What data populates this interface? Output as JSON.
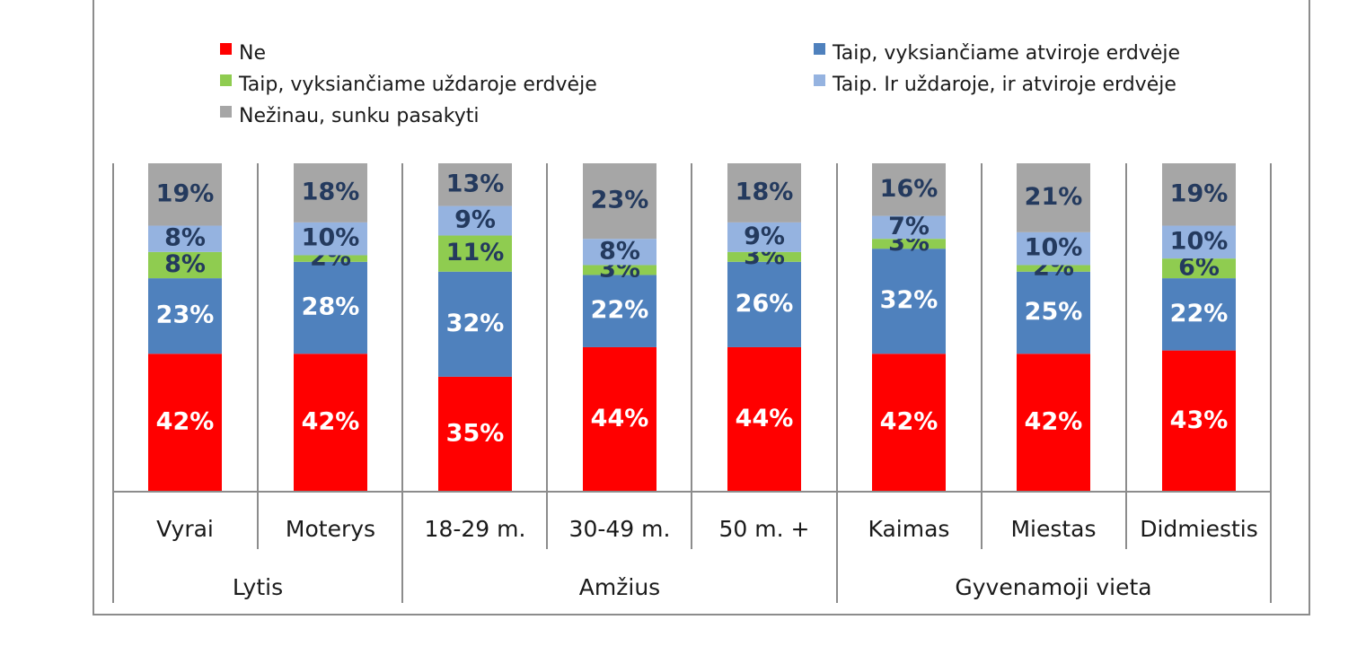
{
  "chart_data": {
    "type": "bar",
    "stacked": true,
    "legend_position": "top",
    "categories": [
      "Vyrai",
      "Moterys",
      "18-29 m.",
      "30-49 m.",
      "50 m. +",
      "Kaimas",
      "Miestas",
      "Didmiestis"
    ],
    "groups": [
      {
        "label": "Lytis",
        "categories": [
          "Vyrai",
          "Moterys"
        ]
      },
      {
        "label": "Amžius",
        "categories": [
          "18-29 m.",
          "30-49 m.",
          "50 m. +"
        ]
      },
      {
        "label": "Gyvenamoji vieta",
        "categories": [
          "Kaimas",
          "Miestas",
          "Didmiestis"
        ]
      }
    ],
    "series": [
      {
        "name": "Ne",
        "color": "#ff0000",
        "label_color": "#ffffff",
        "values": [
          42,
          42,
          35,
          44,
          44,
          42,
          42,
          43
        ]
      },
      {
        "name": "Taip, vyksiančiame atviroje erdvėje",
        "color": "#4f81bd",
        "label_color": "#ffffff",
        "values": [
          23,
          28,
          32,
          22,
          26,
          32,
          25,
          22
        ]
      },
      {
        "name": "Taip, vyksiančiame uždaroje erdvėje",
        "color": "#8fcc50",
        "label_color": "#243a5e",
        "values": [
          8,
          2,
          11,
          3,
          3,
          3,
          2,
          6
        ]
      },
      {
        "name": "Taip. Ir uždaroje, ir atviroje erdvėje",
        "color": "#95b3e0",
        "label_color": "#243a5e",
        "values": [
          8,
          10,
          9,
          8,
          9,
          7,
          10,
          10
        ]
      },
      {
        "name": "Nežinau, sunku pasakyti",
        "color": "#a6a6a6",
        "label_color": "#243a5e",
        "values": [
          19,
          18,
          13,
          23,
          18,
          16,
          21,
          19
        ]
      }
    ],
    "value_suffix": "%",
    "ylim": [
      0,
      100
    ],
    "grid": false
  }
}
